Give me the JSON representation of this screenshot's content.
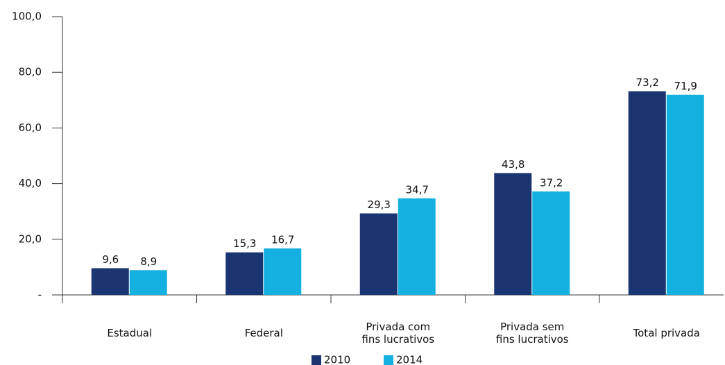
{
  "chart_data": {
    "type": "bar",
    "categories": [
      "Estadual",
      "Federal",
      "Privada com\nfins lucrativos",
      "Privada sem\nfins lucrativos",
      "Total privada"
    ],
    "series": [
      {
        "name": "2010",
        "color": "#1b3572",
        "values": [
          9.6,
          15.3,
          29.3,
          43.8,
          73.2
        ],
        "value_labels": [
          "9,6",
          "15,3",
          "29,3",
          "43,8",
          "73,2"
        ]
      },
      {
        "name": "2014",
        "color": "#14b0df",
        "values": [
          8.9,
          16.7,
          34.7,
          37.2,
          71.9
        ],
        "value_labels": [
          "8,9",
          "16,7",
          "34,7",
          "37,2",
          "71,9"
        ]
      }
    ],
    "ylim": [
      0,
      100
    ],
    "yticks": [
      {
        "value": 0,
        "label": "-"
      },
      {
        "value": 20,
        "label": "20,0"
      },
      {
        "value": 40,
        "label": "40,0"
      },
      {
        "value": 60,
        "label": "60,0"
      },
      {
        "value": 80,
        "label": "80,0"
      },
      {
        "value": 100,
        "label": "100,0"
      }
    ],
    "grid": false
  }
}
